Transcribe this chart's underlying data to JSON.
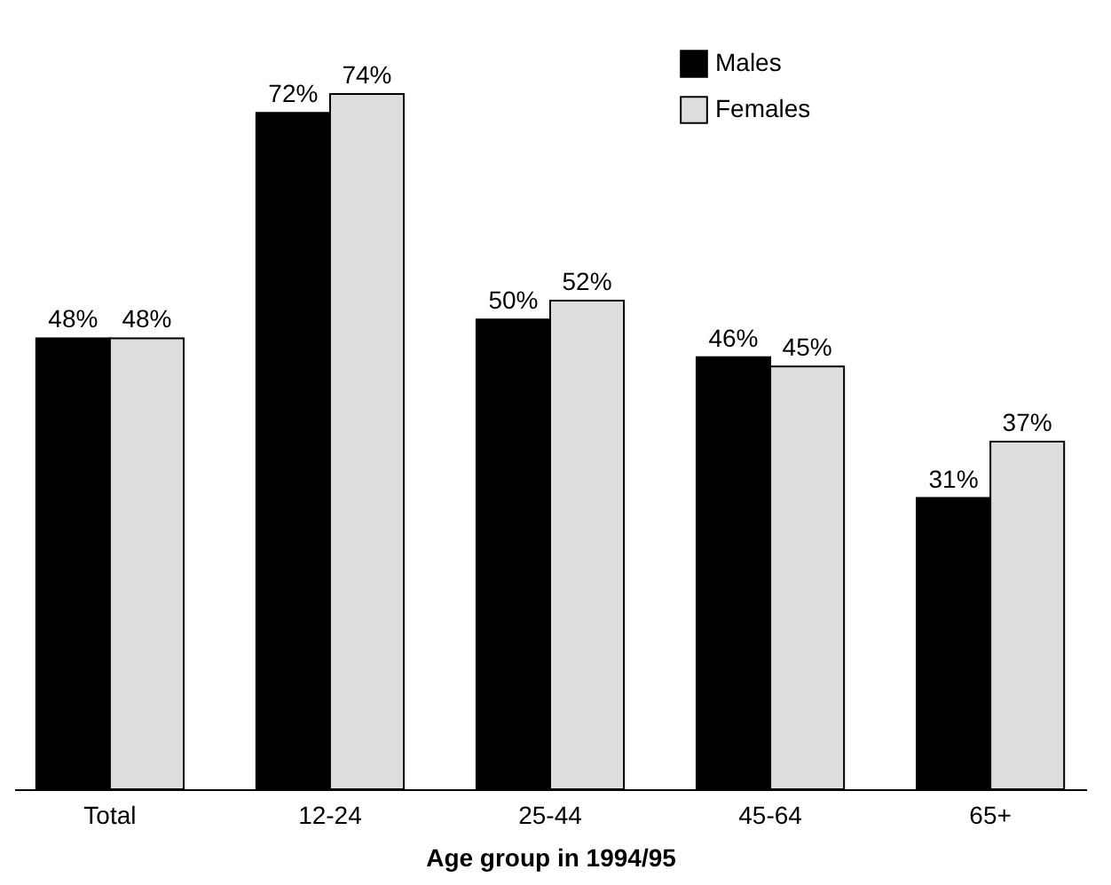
{
  "chart_data": {
    "type": "bar",
    "xlabel": "Age group in 1994/95",
    "categories": [
      "Total",
      "12-24",
      "25-44",
      "45-64",
      "65+"
    ],
    "series": [
      {
        "name": "Males",
        "color": "#000000",
        "values": [
          48,
          72,
          50,
          46,
          31
        ],
        "value_labels": [
          "48%",
          "72%",
          "50%",
          "46%",
          "31%"
        ]
      },
      {
        "name": "Females",
        "color": "#dddddd",
        "values": [
          48,
          74,
          52,
          45,
          37
        ],
        "value_labels": [
          "48%",
          "74%",
          "52%",
          "45%",
          "37%"
        ]
      }
    ],
    "legend": "top"
  }
}
